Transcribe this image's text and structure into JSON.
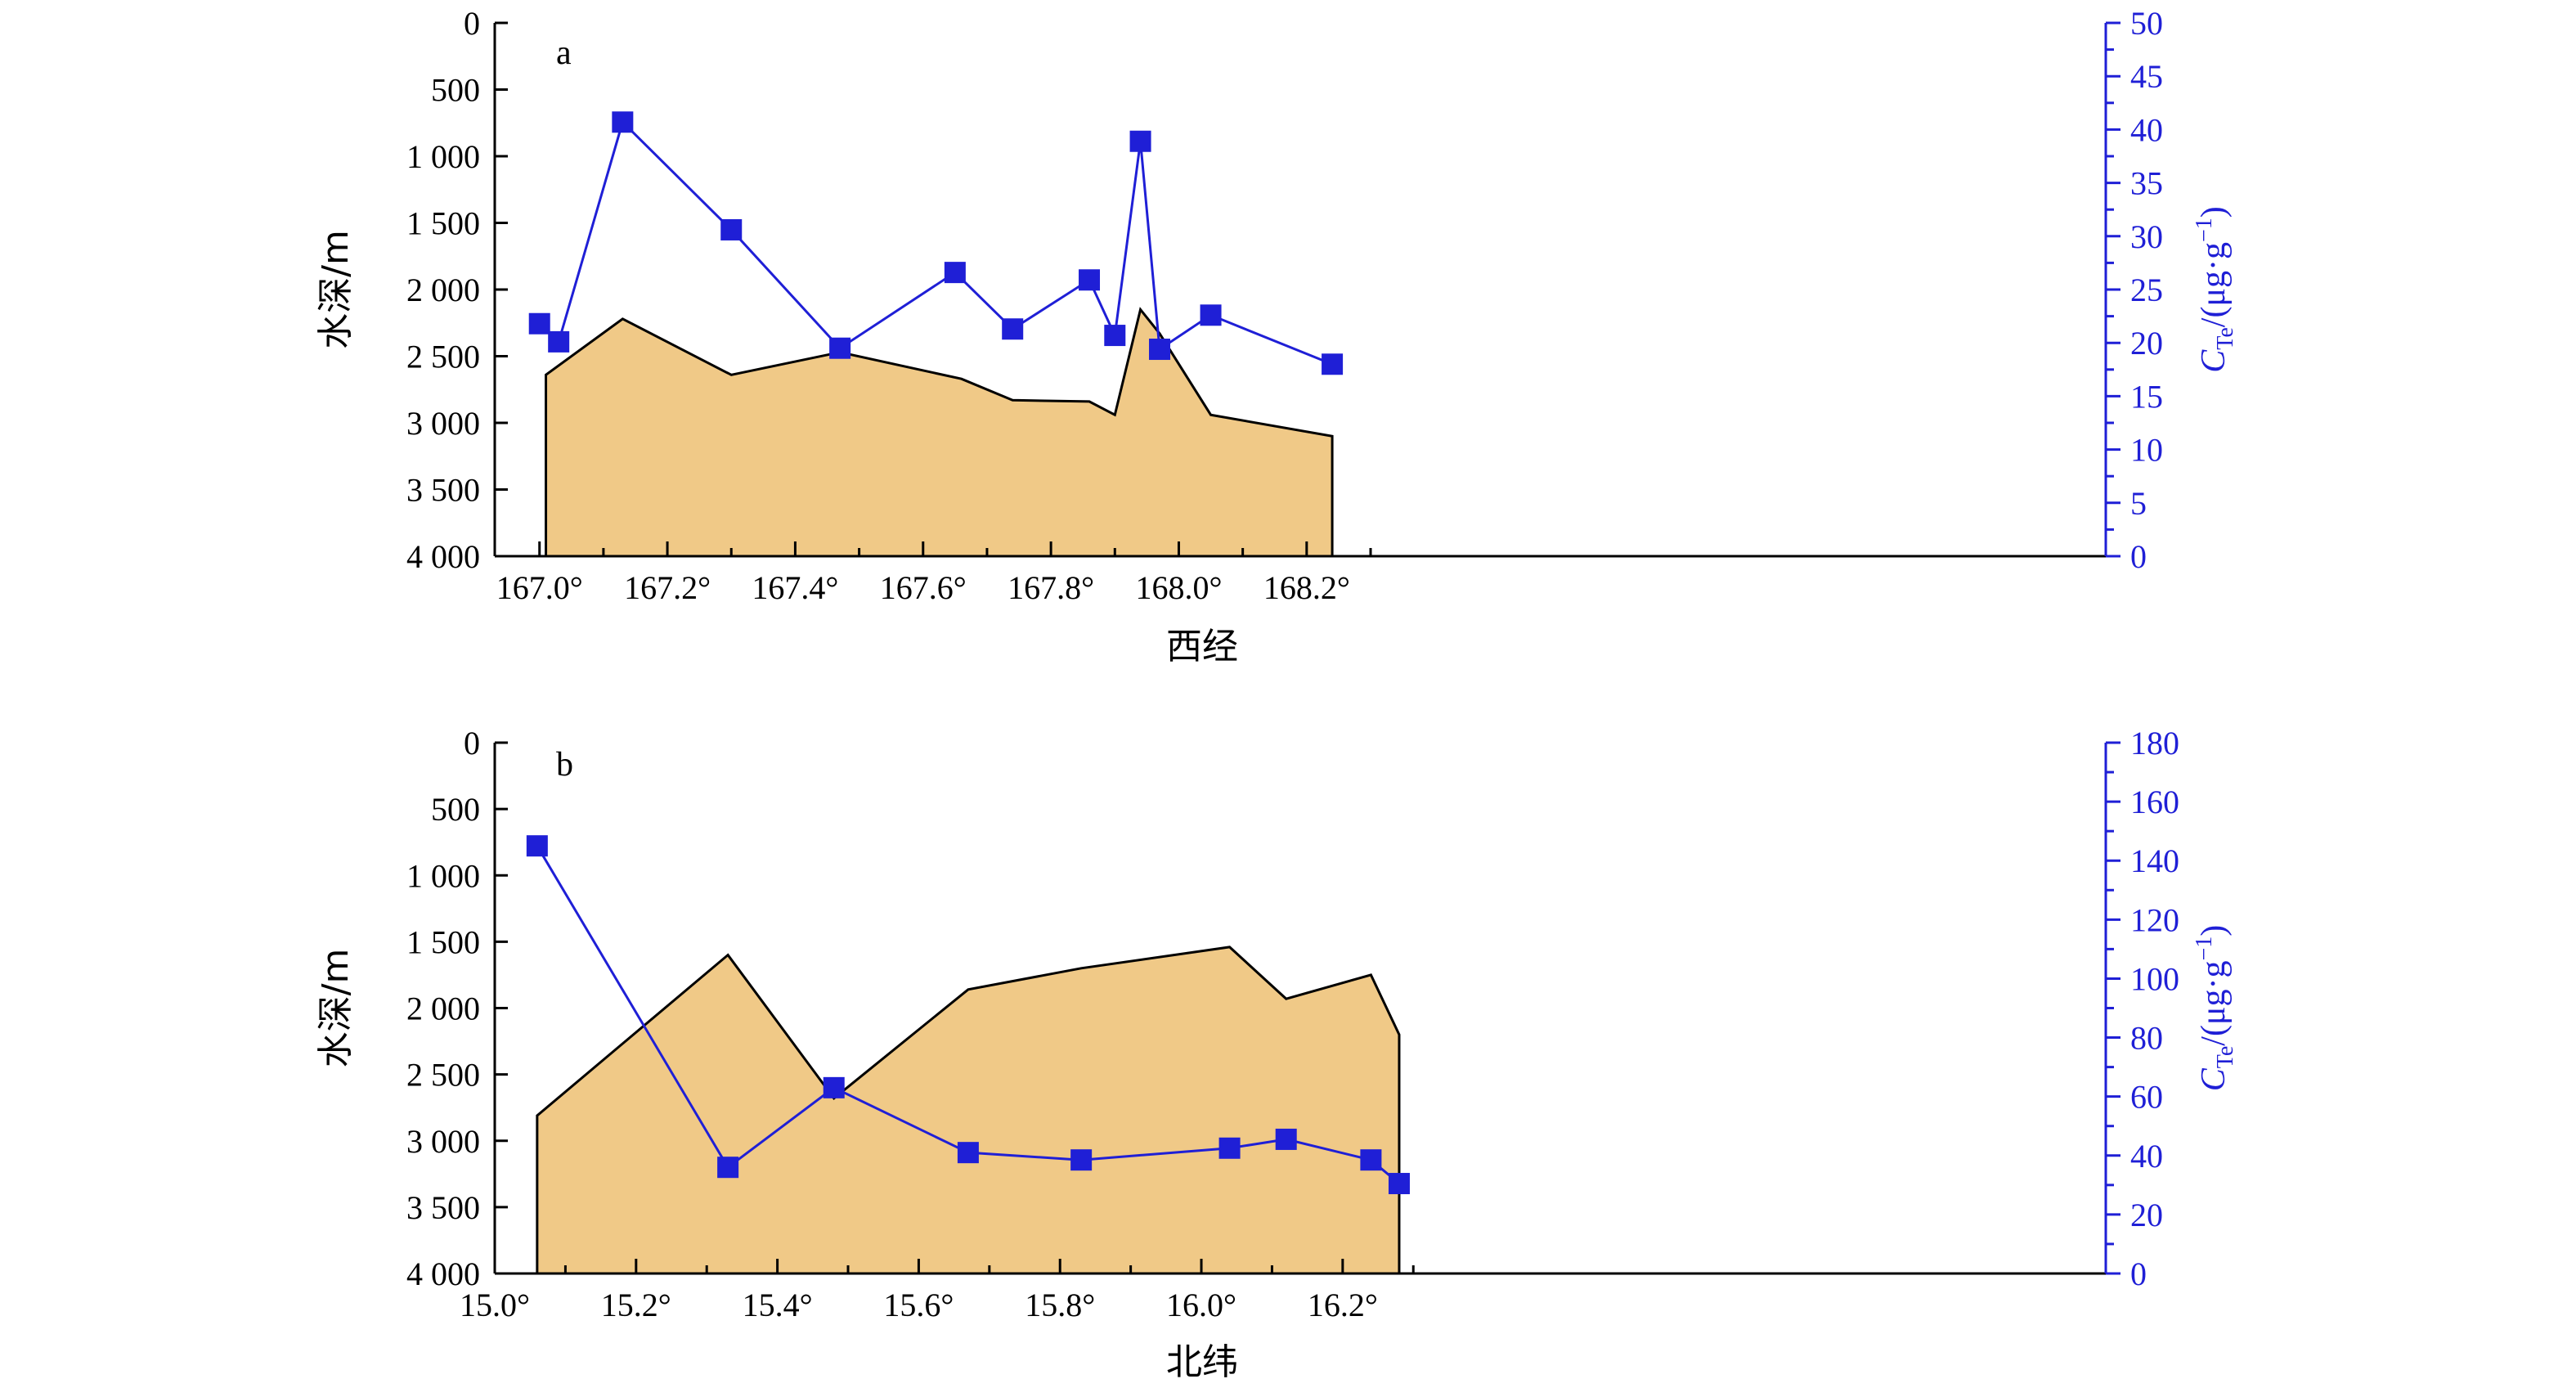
{
  "colors": {
    "terrain_fill": "#f0c987",
    "terrain_stroke": "#000000",
    "te_series": "#1f1fd6",
    "axis": "#000000",
    "right_axis": "#1f1fd6"
  },
  "chart_data": [
    {
      "type": "area+line",
      "panel_label": "a",
      "xlabel": "西经",
      "ylabel_left": "水深/m",
      "ylabel_right": "C_Te/(μg·g⁻¹)",
      "ylabel_right_main": "C",
      "ylabel_right_sub": "Te",
      "ylabel_right_tail": "/(μg·g",
      "ylabel_right_exp": "−1",
      "ylabel_right_close": ")",
      "xlim": [
        166.93,
        169.45
      ],
      "xticks": [
        167.0,
        167.2,
        167.4,
        167.6,
        167.8,
        168.0,
        168.2
      ],
      "xtick_labels": [
        "167.0°",
        "167.2°",
        "167.4°",
        "167.6°",
        "167.8°",
        "168.0°",
        "168.2°"
      ],
      "ylim_left": [
        0,
        4000
      ],
      "yticks_left": [
        0,
        500,
        1000,
        1500,
        2000,
        2500,
        3000,
        3500,
        4000
      ],
      "ytick_labels_left": [
        "0",
        "500",
        "1 000",
        "1 500",
        "2 000",
        "2 500",
        "3 000",
        "3 500",
        "4 000"
      ],
      "ylim_right": [
        0,
        50
      ],
      "yticks_right": [
        0,
        5,
        10,
        15,
        20,
        25,
        30,
        35,
        40,
        45,
        50
      ],
      "ytick_labels_right": [
        "0",
        "5",
        "10",
        "15",
        "20",
        "25",
        "30",
        "35",
        "40",
        "45",
        "50"
      ],
      "depth_profile": {
        "x": [
          167.01,
          167.13,
          167.3,
          167.47,
          167.66,
          167.74,
          167.86,
          167.9,
          167.94,
          167.97,
          168.05,
          168.24
        ],
        "depth": [
          2640,
          2220,
          2640,
          2470,
          2670,
          2830,
          2840,
          2940,
          2150,
          2330,
          2940,
          3100
        ]
      },
      "te_series": {
        "x": [
          167.0,
          167.03,
          167.13,
          167.3,
          167.47,
          167.65,
          167.74,
          167.86,
          167.9,
          167.94,
          167.97,
          168.05,
          168.24
        ],
        "values": [
          21.8,
          20.1,
          40.7,
          30.6,
          19.5,
          26.6,
          21.3,
          25.9,
          20.7,
          38.9,
          19.4,
          22.6,
          18.0
        ]
      }
    },
    {
      "type": "area+line",
      "panel_label": "b",
      "xlabel": "北纬",
      "ylabel_left": "水深/m",
      "ylabel_right": "C_Te/(μg·g⁻¹)",
      "ylabel_right_main": "C",
      "ylabel_right_sub": "Te",
      "ylabel_right_tail": "/(μg·g",
      "ylabel_right_exp": "−1",
      "ylabel_right_close": ")",
      "xlim": [
        15.0,
        17.28
      ],
      "xticks": [
        15.0,
        15.2,
        15.4,
        15.6,
        15.8,
        16.0,
        16.2
      ],
      "xtick_labels": [
        "15.0°",
        "15.2°",
        "15.4°",
        "15.6°",
        "15.8°",
        "16.0°",
        "16.2°"
      ],
      "ylim_left": [
        0,
        4000
      ],
      "yticks_left": [
        0,
        500,
        1000,
        1500,
        2000,
        2500,
        3000,
        3500,
        4000
      ],
      "ytick_labels_left": [
        "0",
        "500",
        "1 000",
        "1 500",
        "2 000",
        "2 500",
        "3 000",
        "3 500",
        "4 000"
      ],
      "ylim_right": [
        0,
        180
      ],
      "yticks_right": [
        0,
        20,
        40,
        60,
        80,
        100,
        120,
        140,
        160,
        180
      ],
      "ytick_labels_right": [
        "0",
        "20",
        "40",
        "60",
        "80",
        "100",
        "120",
        "140",
        "160",
        "180"
      ],
      "depth_profile": {
        "x": [
          15.06,
          15.33,
          15.48,
          15.67,
          15.83,
          16.04,
          16.12,
          16.24,
          16.28
        ],
        "depth": [
          2810,
          1600,
          2680,
          1860,
          1700,
          1540,
          1930,
          1750,
          2200
        ]
      },
      "te_series": {
        "x": [
          15.06,
          15.33,
          15.48,
          15.67,
          15.83,
          16.04,
          16.12,
          16.24,
          16.28
        ],
        "values": [
          145,
          36,
          63,
          41,
          38.5,
          42.5,
          45.5,
          38.5,
          30.5
        ]
      }
    }
  ]
}
